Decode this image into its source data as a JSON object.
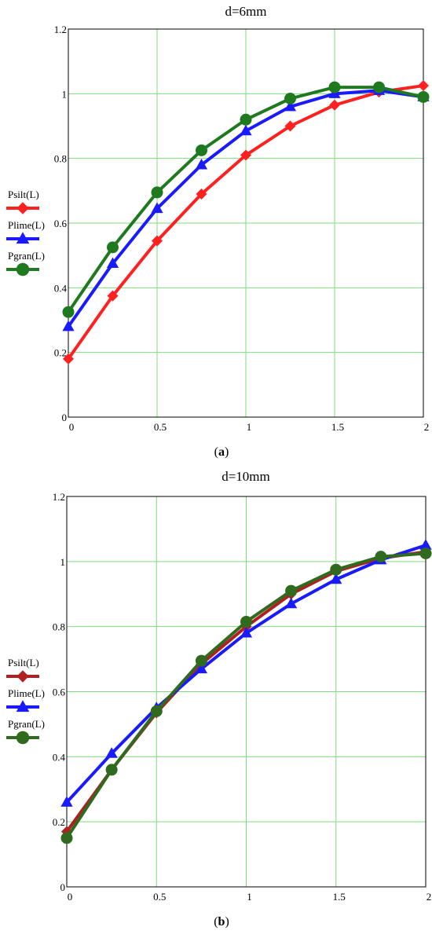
{
  "chart_data": [
    {
      "type": "line",
      "title": "d=6mm",
      "caption_letter": "a",
      "xlabel": "",
      "ylabel": "",
      "xlim": [
        0,
        2
      ],
      "ylim": [
        0,
        1.2
      ],
      "xticks": [
        "0",
        "0.5",
        "1",
        "1.5",
        "2"
      ],
      "yticks": [
        "0",
        "0.2",
        "0.4",
        "0.6",
        "0.8",
        "1",
        "1.2"
      ],
      "grid": true,
      "legend_position": "left",
      "x": [
        0,
        0.25,
        0.5,
        0.75,
        1,
        1.25,
        1.5,
        1.75,
        2
      ],
      "series": [
        {
          "name": "Psilt(L)",
          "color": "#ff2020",
          "marker": "diamond",
          "values": [
            0.18,
            0.375,
            0.545,
            0.69,
            0.81,
            0.9,
            0.965,
            1.005,
            1.025
          ]
        },
        {
          "name": "Plime(L)",
          "color": "#1a1aff",
          "marker": "triangle",
          "values": [
            0.28,
            0.475,
            0.645,
            0.78,
            0.885,
            0.96,
            1.0,
            1.01,
            0.99
          ]
        },
        {
          "name": "Pgran(L)",
          "color": "#1f7a1f",
          "marker": "circle",
          "values": [
            0.325,
            0.525,
            0.695,
            0.825,
            0.92,
            0.985,
            1.02,
            1.02,
            0.99
          ]
        }
      ]
    },
    {
      "type": "line",
      "title": "d=10mm",
      "caption_letter": "b",
      "xlabel": "",
      "ylabel": "",
      "xlim": [
        0,
        2
      ],
      "ylim": [
        0,
        1.2
      ],
      "xticks": [
        "0",
        "0.5",
        "1",
        "1.5",
        "2"
      ],
      "yticks": [
        "0",
        "0.2",
        "0.4",
        "0.6",
        "0.8",
        "1",
        "1.2"
      ],
      "grid": true,
      "legend_position": "left",
      "x": [
        0,
        0.25,
        0.5,
        0.75,
        1,
        1.25,
        1.5,
        1.75,
        2
      ],
      "series": [
        {
          "name": "Psilt(L)",
          "color": "#b02020",
          "marker": "diamond",
          "values": [
            0.17,
            0.36,
            0.535,
            0.685,
            0.8,
            0.9,
            0.97,
            1.01,
            1.03
          ]
        },
        {
          "name": "Plime(L)",
          "color": "#1a1aff",
          "marker": "triangle",
          "values": [
            0.26,
            0.41,
            0.55,
            0.67,
            0.78,
            0.87,
            0.945,
            1.005,
            1.05
          ]
        },
        {
          "name": "Pgran(L)",
          "color": "#2f6a1f",
          "marker": "circle",
          "values": [
            0.15,
            0.36,
            0.54,
            0.695,
            0.815,
            0.91,
            0.975,
            1.015,
            1.025
          ]
        }
      ]
    }
  ]
}
